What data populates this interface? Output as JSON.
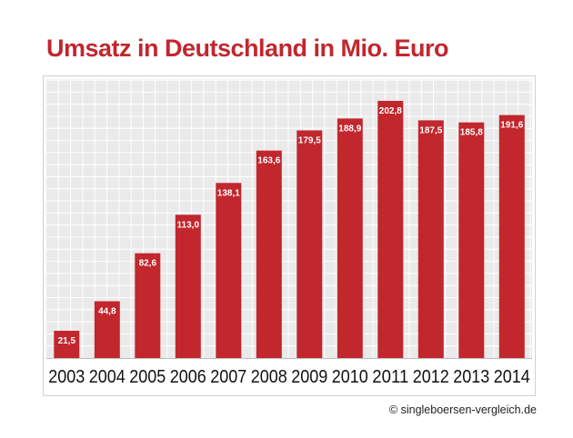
{
  "chart_data": {
    "type": "bar",
    "title": "Umsatz in Deutschland in Mio. Euro",
    "categories": [
      "2003",
      "2004",
      "2005",
      "2006",
      "2007",
      "2008",
      "2009",
      "2010",
      "2011",
      "2012",
      "2013",
      "2014"
    ],
    "values": [
      21.5,
      44.8,
      82.6,
      113.0,
      138.1,
      163.6,
      179.5,
      188.9,
      202.8,
      187.5,
      185.8,
      191.6
    ],
    "value_labels": [
      "21,5",
      "44,8",
      "82,6",
      "113,0",
      "138,1",
      "163,6",
      "179,5",
      "188,9",
      "202,8",
      "187,5",
      "185,8",
      "191,6"
    ],
    "xlabel": "",
    "ylabel": "",
    "ylim": [
      0,
      220
    ],
    "grid": true,
    "legend": "none",
    "colors": {
      "bar": "#c1272d",
      "title": "#c1272d",
      "grid_background": "#eaeaea",
      "grid_line": "#ffffff",
      "axis_labels": "#111111"
    }
  },
  "footer": {
    "credit": "© singleboersen-vergleich.de"
  }
}
